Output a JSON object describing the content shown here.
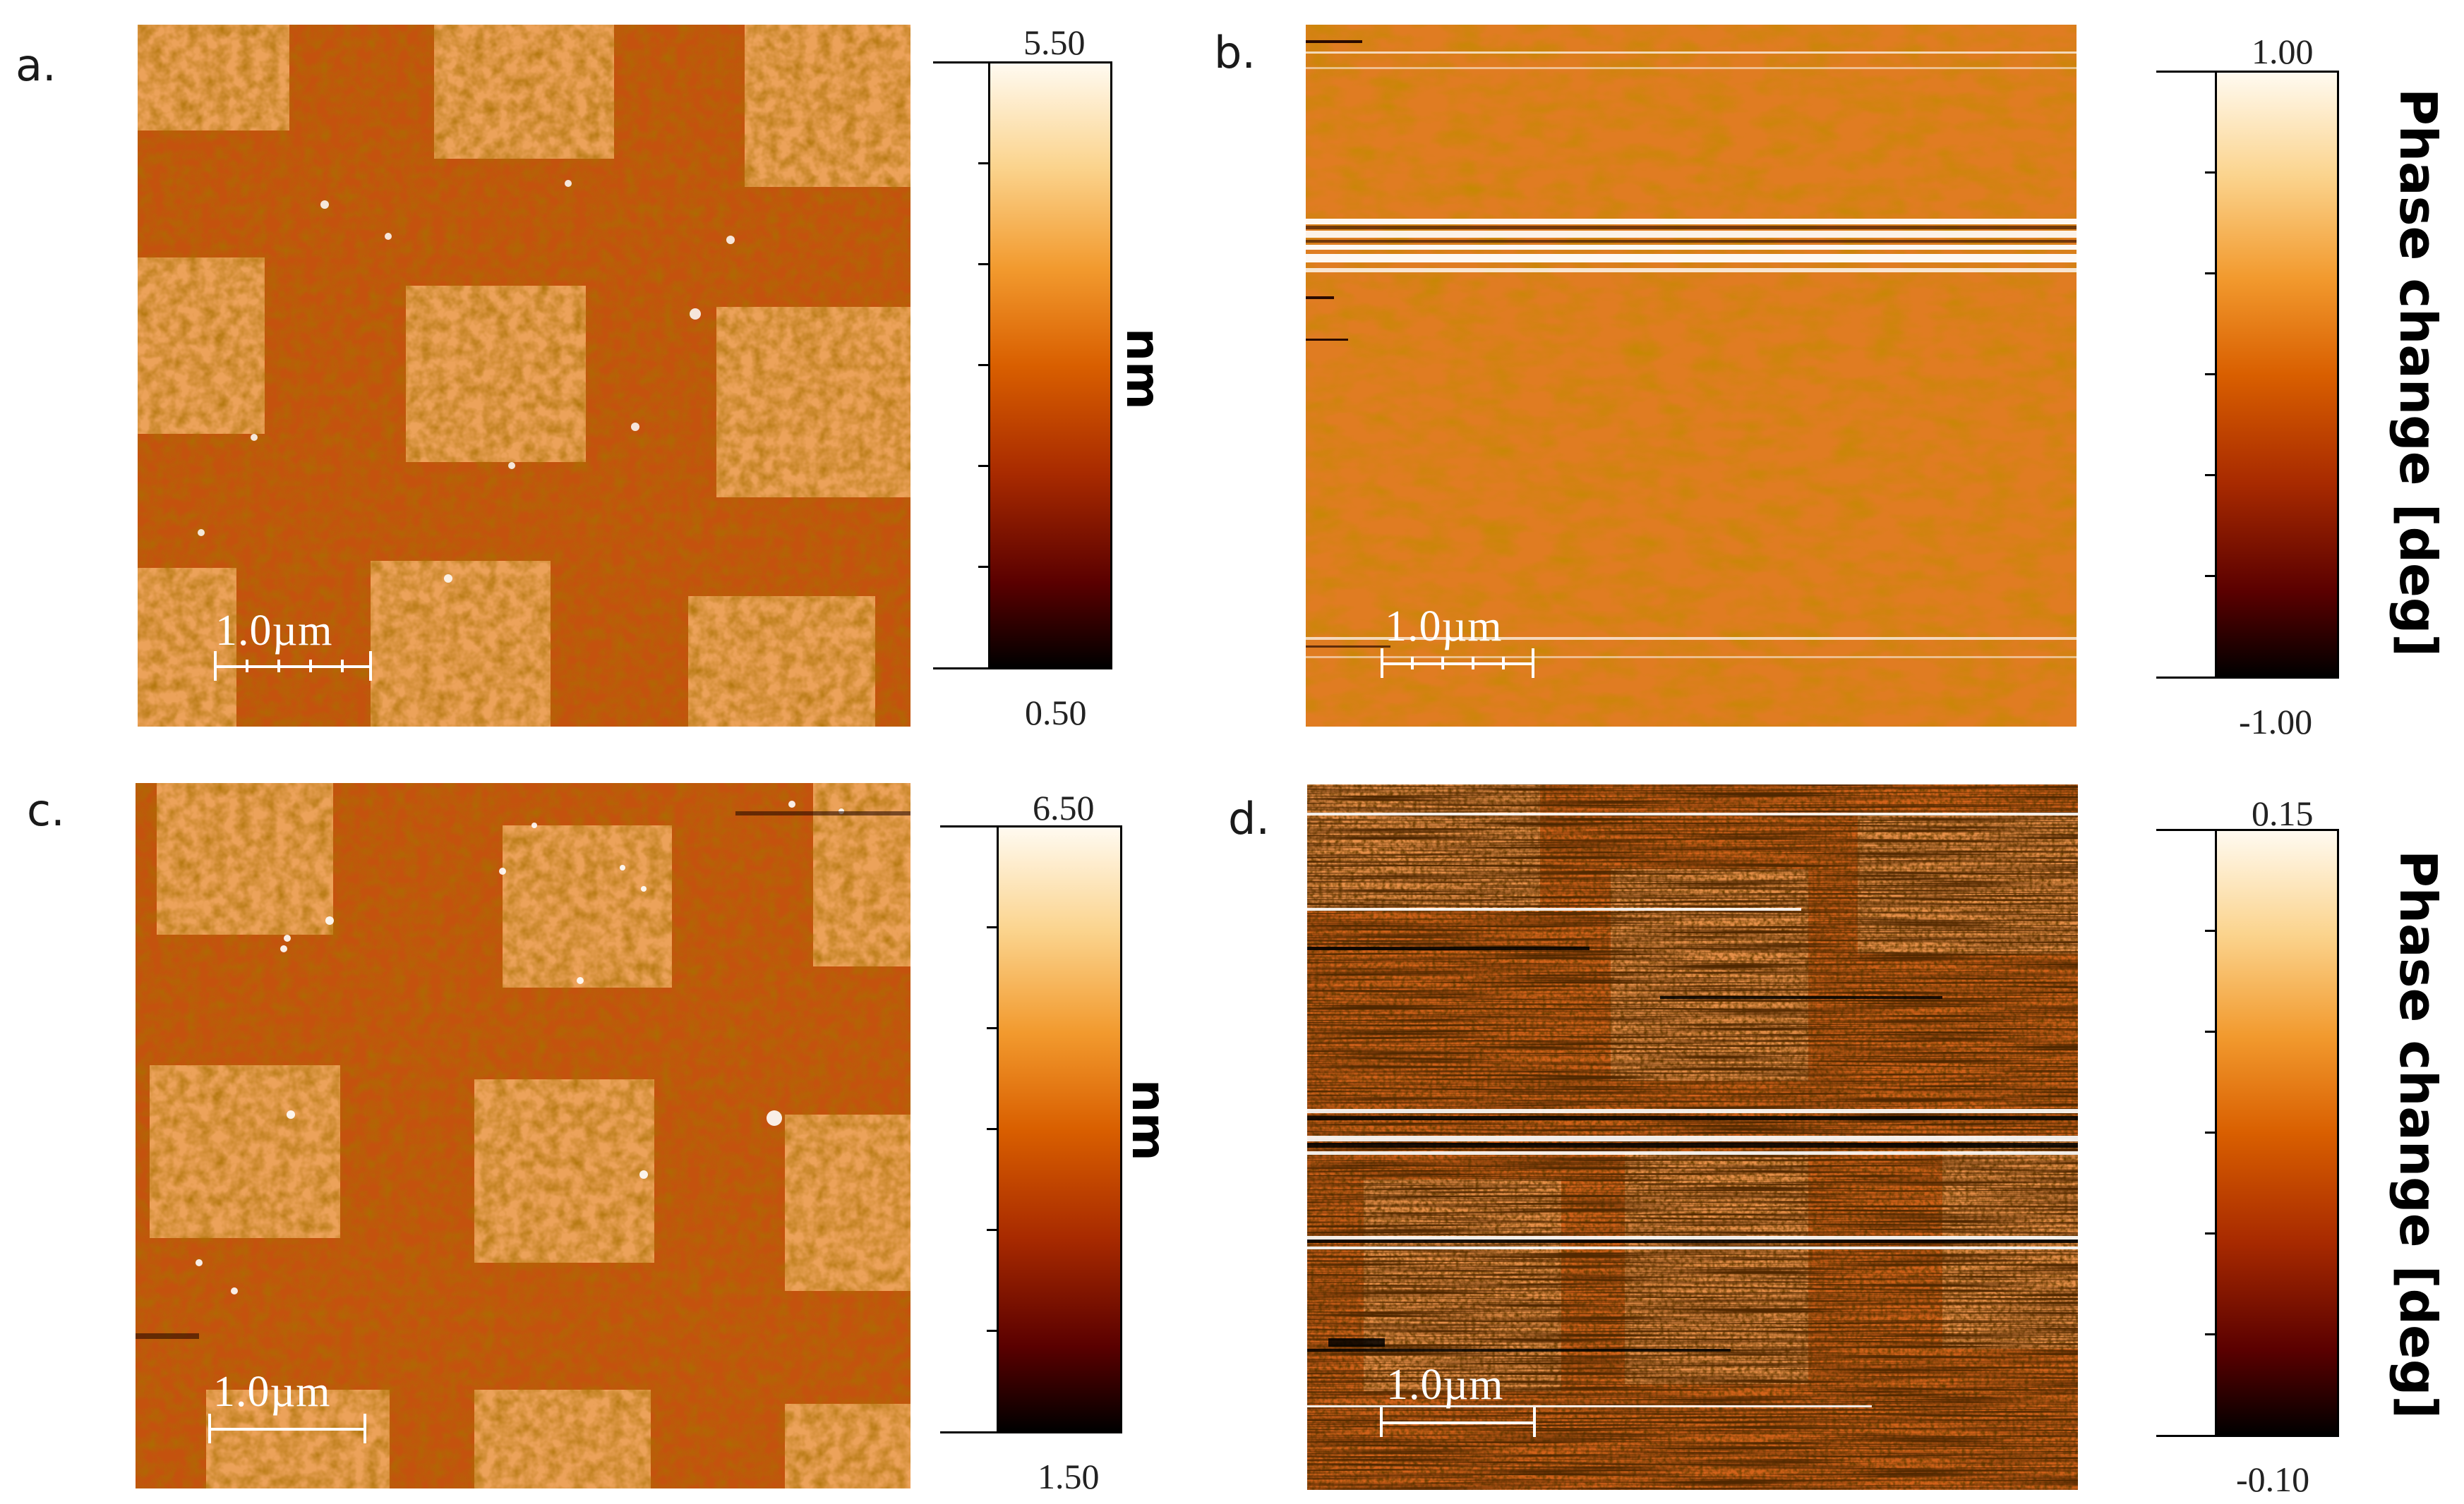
{
  "figure": {
    "panels": [
      {
        "label": "a.",
        "image": "topography (height) AFM image with checkerboard of bright squares",
        "scale_bar": "1.0µm",
        "colorbar": {
          "max": "5.50",
          "min": "0.50",
          "unit": "nm"
        }
      },
      {
        "label": "b.",
        "image": "phase AFM image with horizontal scan streaks",
        "scale_bar": "1.0µm",
        "colorbar": {
          "max": "1.00",
          "min": "-1.00",
          "unit": "Phase change [deg]"
        }
      },
      {
        "label": "c.",
        "image": "topography (height) AFM image with checkerboard of bright squares",
        "scale_bar": "1.0µm",
        "colorbar": {
          "max": "6.50",
          "min": "1.50",
          "unit": "nm"
        }
      },
      {
        "label": "d.",
        "image": "noisy phase AFM image with dark/bright horizontal streaks",
        "scale_bar": "1.0µm",
        "colorbar": {
          "max": "0.15",
          "min": "-0.10",
          "unit": "Phase change [deg]"
        }
      }
    ],
    "colormap": [
      "#000000",
      "#5a0000",
      "#a82a00",
      "#d95f00",
      "#f29a2e",
      "#fbd48e",
      "#fffaf0"
    ]
  }
}
